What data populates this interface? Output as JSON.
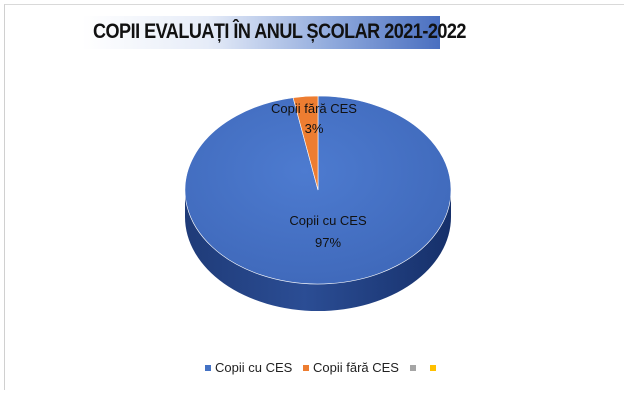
{
  "chart_data": {
    "type": "pie",
    "title": "COPII EVALUAȚI ÎN ANUL ȘCOLAR 2021-2022",
    "categories": [
      "Copii cu CES",
      "Copii fără CES",
      "",
      ""
    ],
    "values": [
      97,
      3,
      0,
      0
    ],
    "percent_labels": [
      "97%",
      "3%"
    ],
    "colors": [
      "#4472c4",
      "#ed7d31",
      "#a5a5a5",
      "#ffc000"
    ],
    "legend_position": "bottom",
    "style": "3d"
  }
}
